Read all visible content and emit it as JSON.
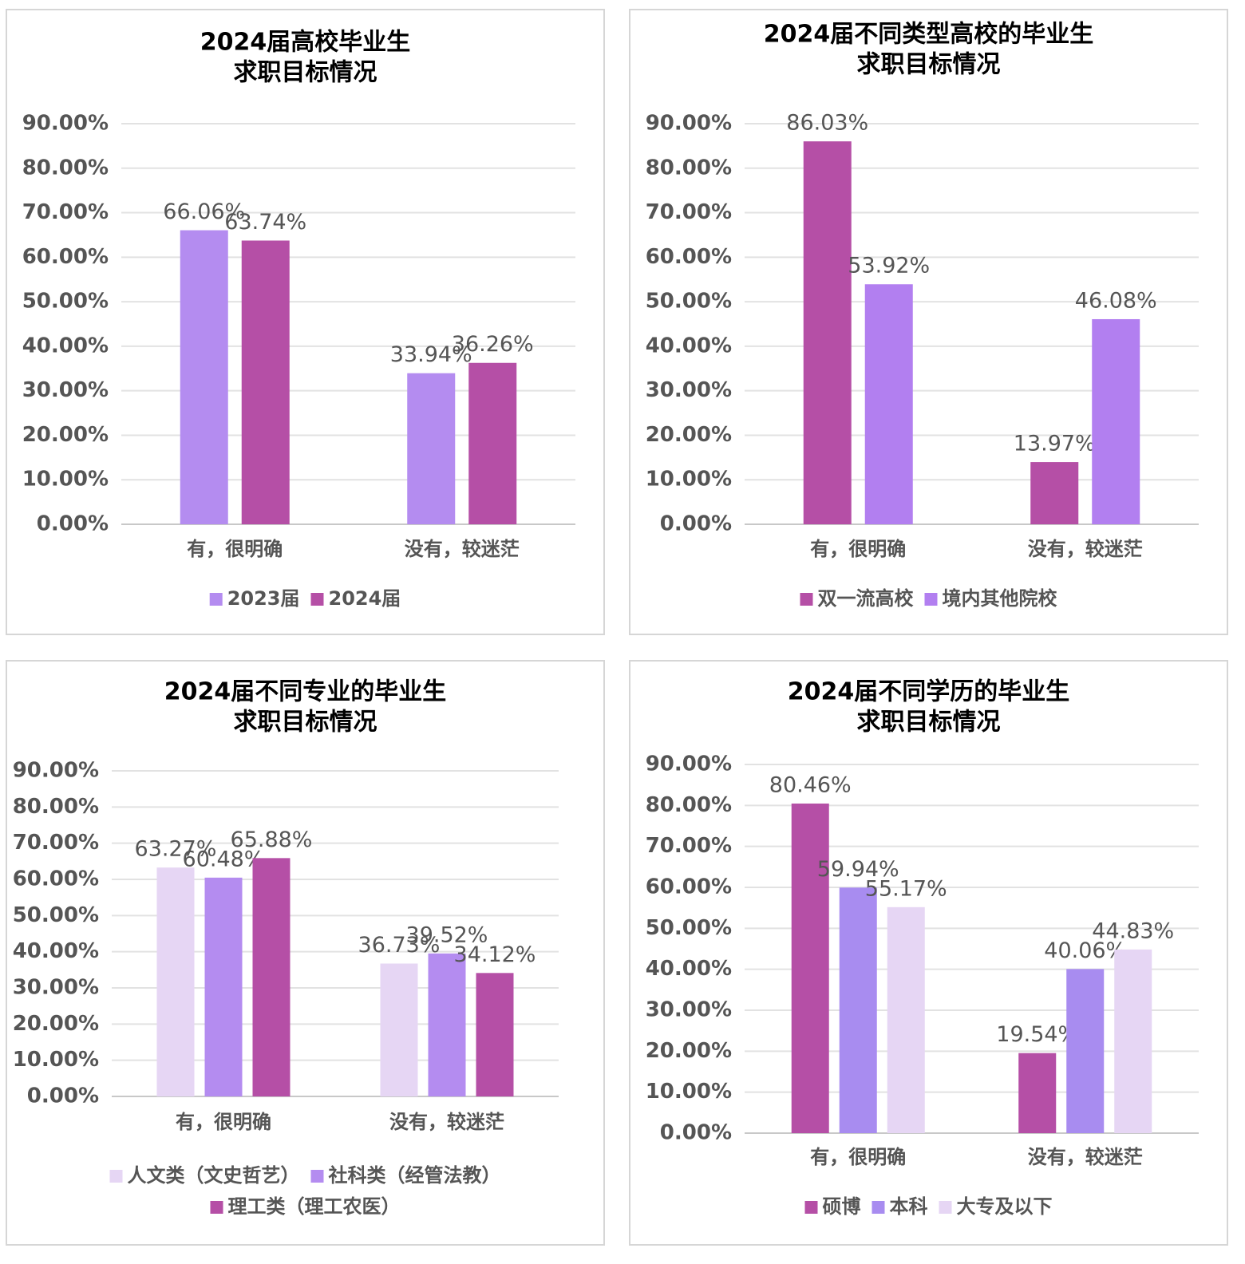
{
  "chart_data": [
    {
      "type": "bar",
      "title": [
        "2024届高校毕业生",
        "求职目标情况"
      ],
      "categories": [
        "有，很明确",
        "没有，较迷茫"
      ],
      "series": [
        {
          "name": "2023届",
          "color": "#b48cf0",
          "values": [
            66.06,
            33.94
          ],
          "value_labels": [
            "66.06%",
            "33.94%"
          ]
        },
        {
          "name": "2024届",
          "color": "#b54fa6",
          "values": [
            63.74,
            36.26
          ],
          "value_labels": [
            "63.74%",
            "36.26%"
          ]
        }
      ],
      "ylim": [
        0,
        90
      ],
      "yticks": [
        {
          "value": 0,
          "label": "0.00%"
        },
        {
          "value": 10,
          "label": "10.00%"
        },
        {
          "value": 20,
          "label": "20.00%"
        },
        {
          "value": 30,
          "label": "30.00%"
        },
        {
          "value": 40,
          "label": "40.00%"
        },
        {
          "value": 50,
          "label": "50.00%"
        },
        {
          "value": 60,
          "label": "60.00%"
        },
        {
          "value": 70,
          "label": "70.00%"
        },
        {
          "value": 80,
          "label": "80.00%"
        },
        {
          "value": 90,
          "label": "90.00%"
        }
      ],
      "grid": true,
      "legend": "bottom"
    },
    {
      "type": "bar",
      "title": [
        "2024届不同类型高校的毕业生",
        "求职目标情况"
      ],
      "categories": [
        "有，很明确",
        "没有，较迷茫"
      ],
      "series": [
        {
          "name": "双一流高校",
          "color": "#b54fa6",
          "values": [
            86.03,
            13.97
          ],
          "value_labels": [
            "86.03%",
            "13.97%"
          ]
        },
        {
          "name": "境内其他院校",
          "color": "#b27ff0",
          "values": [
            53.92,
            46.08
          ],
          "value_labels": [
            "53.92%",
            "46.08%"
          ]
        }
      ],
      "ylim": [
        0,
        90
      ],
      "yticks": [
        {
          "value": 0,
          "label": "0.00%"
        },
        {
          "value": 10,
          "label": "10.00%"
        },
        {
          "value": 20,
          "label": "20.00%"
        },
        {
          "value": 30,
          "label": "30.00%"
        },
        {
          "value": 40,
          "label": "40.00%"
        },
        {
          "value": 50,
          "label": "50.00%"
        },
        {
          "value": 60,
          "label": "60.00%"
        },
        {
          "value": 70,
          "label": "70.00%"
        },
        {
          "value": 80,
          "label": "80.00%"
        },
        {
          "value": 90,
          "label": "90.00%"
        }
      ],
      "grid": true,
      "legend": "bottom"
    },
    {
      "type": "bar",
      "title": [
        "2024届不同专业的毕业生",
        "求职目标情况"
      ],
      "categories": [
        "有，很明确",
        "没有，较迷茫"
      ],
      "series": [
        {
          "name": "人文类（文史哲艺）",
          "color": "#e6d6f4",
          "values": [
            63.27,
            36.73
          ],
          "value_labels": [
            "63.27%",
            "36.73%"
          ]
        },
        {
          "name": "社科类（经管法教）",
          "color": "#b48cf0",
          "values": [
            60.48,
            39.52
          ],
          "value_labels": [
            "60.48%",
            "39.52%"
          ]
        },
        {
          "name": "理工类（理工农医）",
          "color": "#b54fa6",
          "values": [
            65.88,
            34.12
          ],
          "value_labels": [
            "65.88%",
            "34.12%"
          ]
        }
      ],
      "ylim": [
        0,
        90
      ],
      "yticks": [
        {
          "value": 0,
          "label": "0.00%"
        },
        {
          "value": 10,
          "label": "10.00%"
        },
        {
          "value": 20,
          "label": "20.00%"
        },
        {
          "value": 30,
          "label": "30.00%"
        },
        {
          "value": 40,
          "label": "40.00%"
        },
        {
          "value": 50,
          "label": "50.00%"
        },
        {
          "value": 60,
          "label": "60.00%"
        },
        {
          "value": 70,
          "label": "70.00%"
        },
        {
          "value": 80,
          "label": "80.00%"
        },
        {
          "value": 90,
          "label": "90.00%"
        }
      ],
      "grid": true,
      "legend": "bottom"
    },
    {
      "type": "bar",
      "title": [
        "2024届不同学历的毕业生",
        "求职目标情况"
      ],
      "categories": [
        "有，很明确",
        "没有，较迷茫"
      ],
      "series": [
        {
          "name": "硕博",
          "color": "#b54fa6",
          "values": [
            80.46,
            19.54
          ],
          "value_labels": [
            "80.46%",
            "19.54%"
          ]
        },
        {
          "name": "本科",
          "color": "#a88cf0",
          "values": [
            59.94,
            40.06
          ],
          "value_labels": [
            "59.94%",
            "40.06%"
          ]
        },
        {
          "name": "大专及以下",
          "color": "#e6d6f4",
          "values": [
            55.17,
            44.83
          ],
          "value_labels": [
            "55.17%",
            "44.83%"
          ]
        }
      ],
      "ylim": [
        0,
        90
      ],
      "yticks": [
        {
          "value": 0,
          "label": "0.00%"
        },
        {
          "value": 10,
          "label": "10.00%"
        },
        {
          "value": 20,
          "label": "20.00%"
        },
        {
          "value": 30,
          "label": "30.00%"
        },
        {
          "value": 40,
          "label": "40.00%"
        },
        {
          "value": 50,
          "label": "50.00%"
        },
        {
          "value": 60,
          "label": "60.00%"
        },
        {
          "value": 70,
          "label": "70.00%"
        },
        {
          "value": 80,
          "label": "80.00%"
        },
        {
          "value": 90,
          "label": "90.00%"
        }
      ],
      "grid": true,
      "legend": "bottom"
    }
  ]
}
